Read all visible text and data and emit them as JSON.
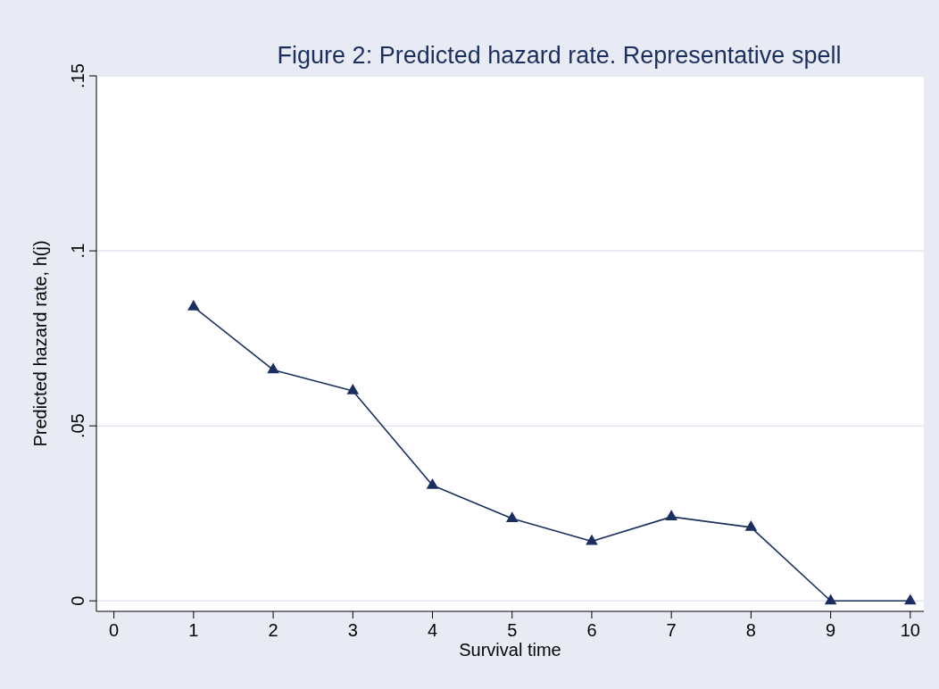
{
  "chart_data": {
    "type": "line",
    "title": "Figure 2: Predicted hazard rate. Representative spell",
    "xlabel": "Survival time",
    "ylabel": "Predicted hazard rate, h(j)",
    "x": [
      1,
      2,
      3,
      4,
      5,
      6,
      7,
      8,
      9,
      10
    ],
    "series": [
      {
        "color": "#1a2f5f",
        "values": [
          0.084,
          0.066,
          0.06,
          0.033,
          0.0235,
          0.017,
          0.024,
          0.021,
          0,
          0
        ]
      }
    ],
    "xlim": [
      -0.22,
      10.17
    ],
    "xticks": [
      0,
      1,
      2,
      3,
      4,
      5,
      6,
      7,
      8,
      9,
      10
    ],
    "ylim": [
      -0.003,
      0.15
    ],
    "yticks": [
      {
        "value": 0,
        "label": "0"
      },
      {
        "value": 0.05,
        "label": ".05"
      },
      {
        "value": 0.1,
        "label": ".1"
      },
      {
        "value": 0.15,
        "label": ".15"
      }
    ],
    "grid": "y",
    "marker": "triangle",
    "line_style": "solid"
  }
}
